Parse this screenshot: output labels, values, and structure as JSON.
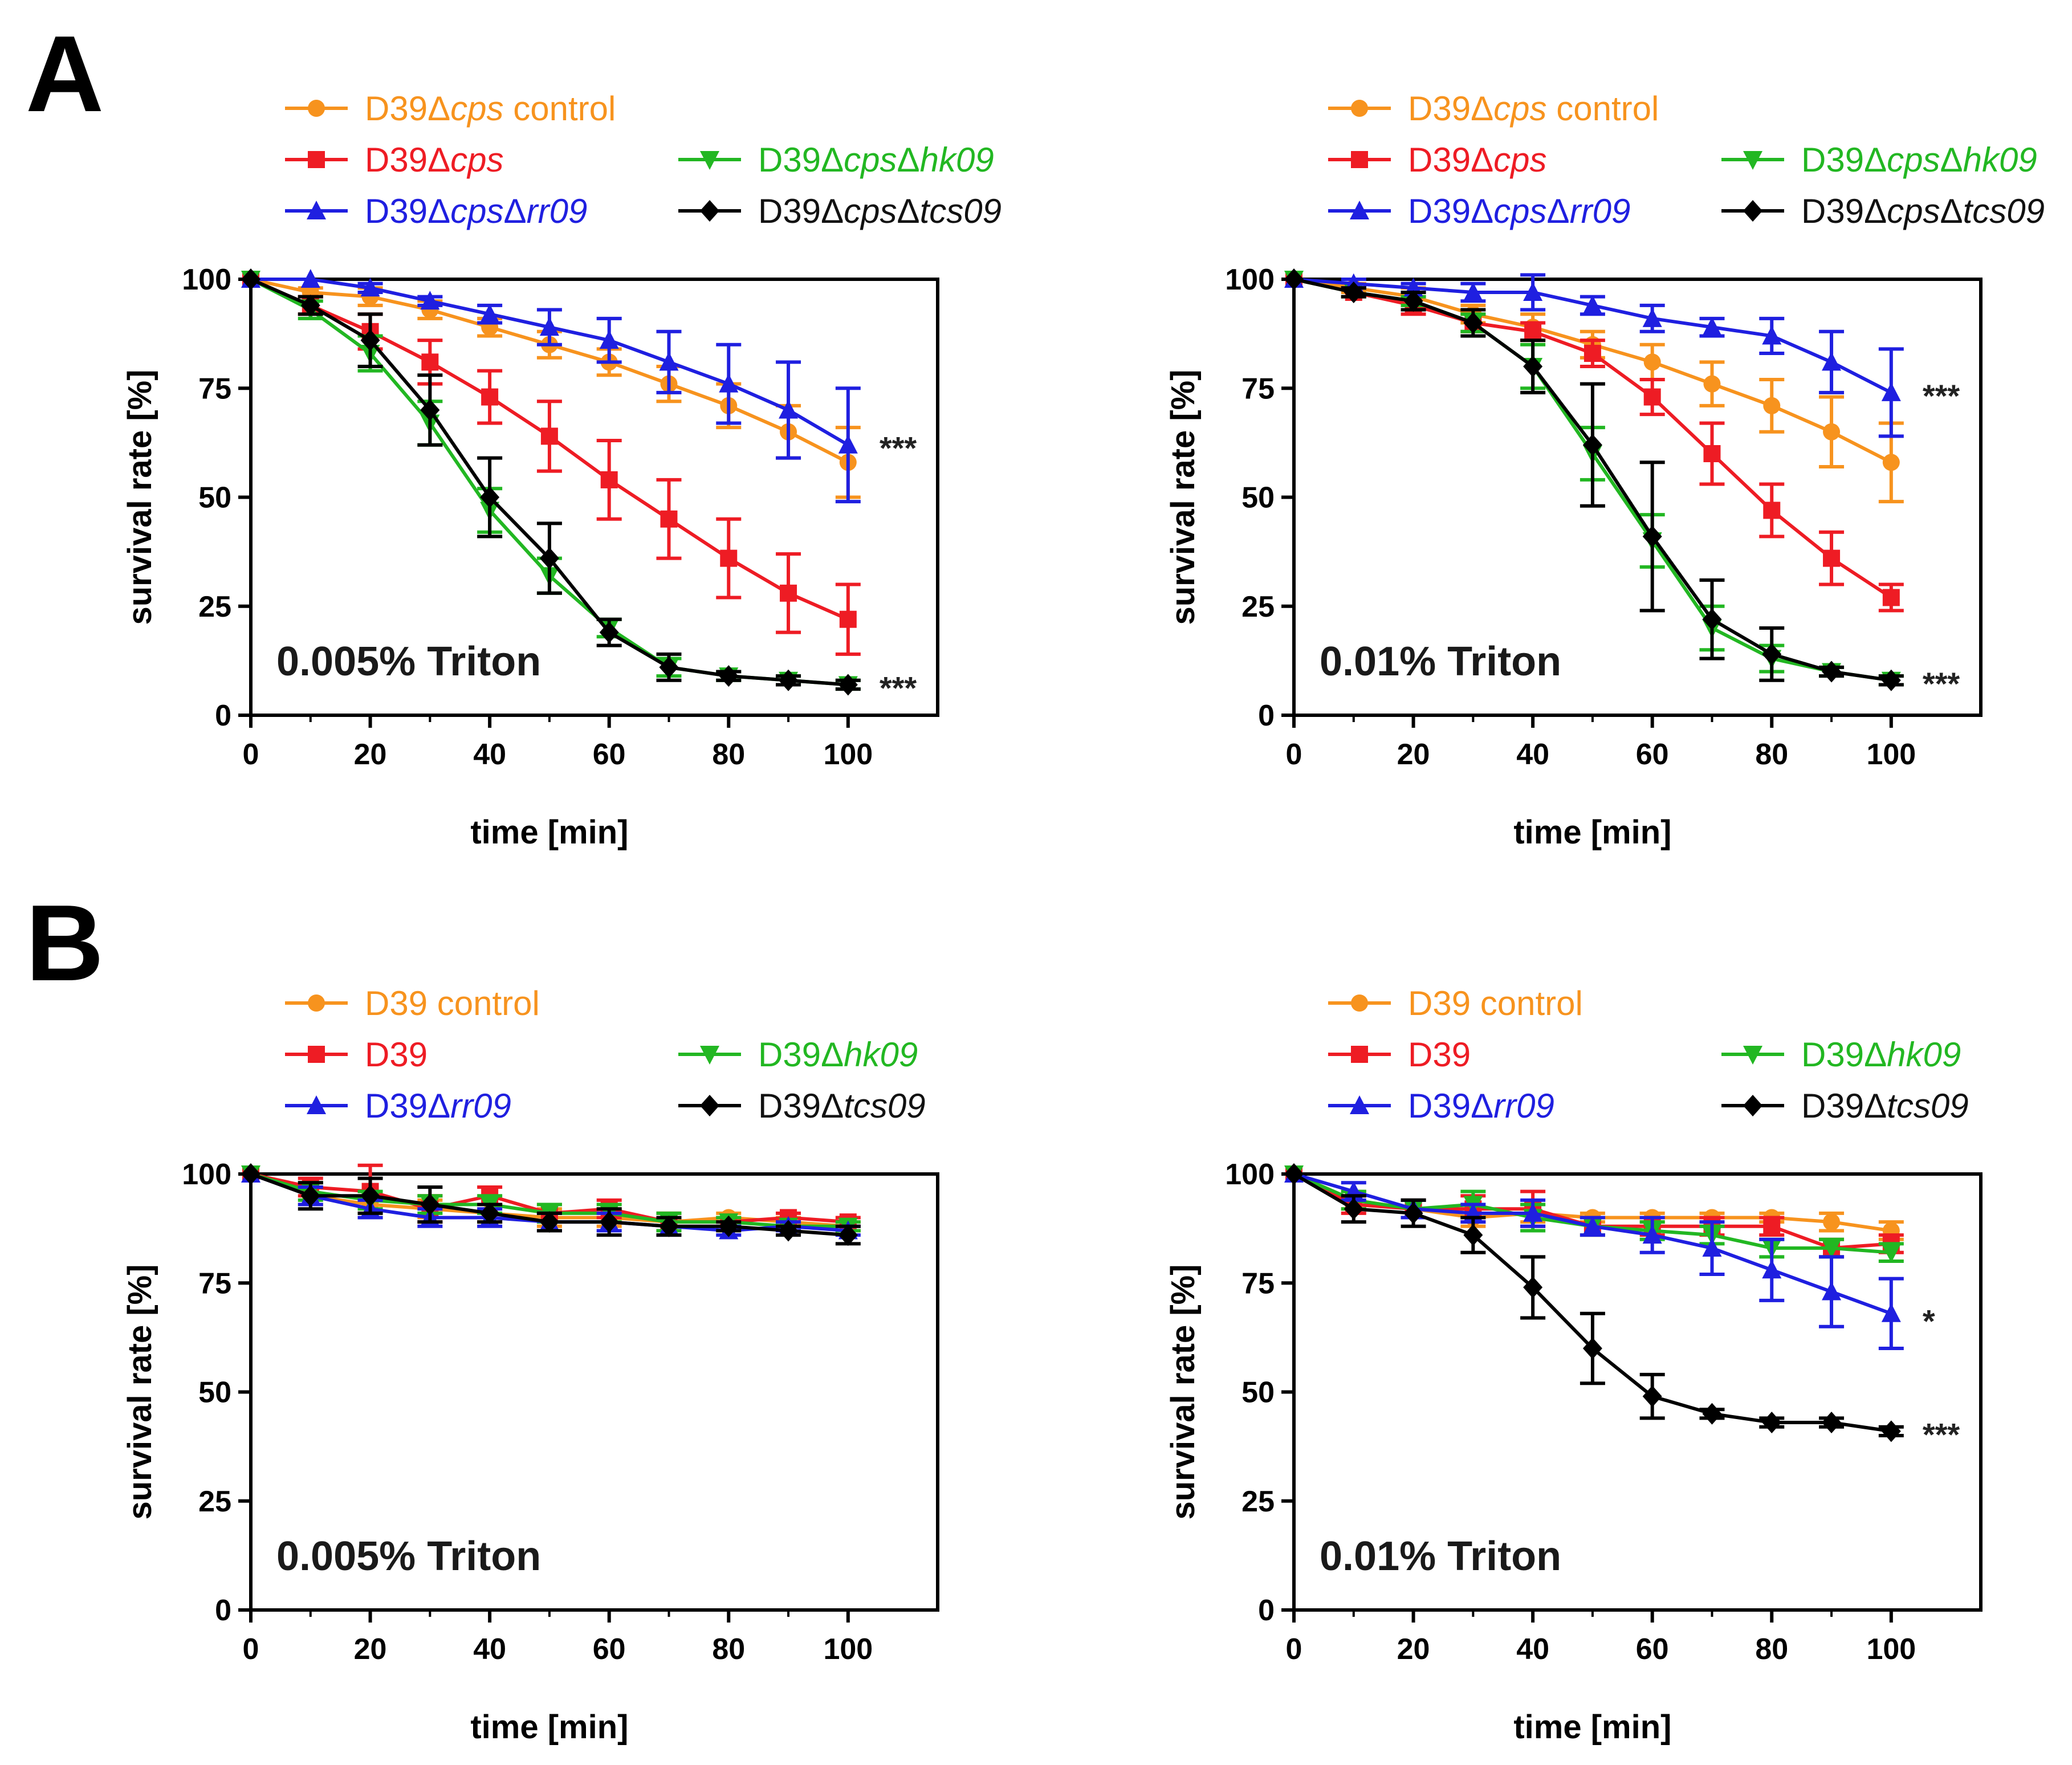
{
  "figure": {
    "panel_labels": [
      "A",
      "B"
    ]
  },
  "chart_data": [
    {
      "type": "line",
      "panel": "A",
      "title": "",
      "annotation": "0.005% Triton",
      "xlabel": "time [min]",
      "ylabel": "survival rate [%]",
      "xlim": [
        0,
        115
      ],
      "ylim": [
        0,
        100
      ],
      "xticks": [
        "0",
        "20",
        "40",
        "60",
        "80",
        "100"
      ],
      "yticks": [
        "0",
        "25",
        "50",
        "75",
        "100"
      ],
      "x": [
        0,
        10,
        20,
        30,
        40,
        50,
        60,
        70,
        80,
        90,
        100
      ],
      "series": [
        {
          "name": "D39Δcps control",
          "color": "#f7931e",
          "marker": "circle",
          "values": [
            100,
            97,
            96,
            93,
            89,
            85,
            81,
            76,
            71,
            65,
            58
          ],
          "errors": [
            0,
            1,
            2,
            2,
            2,
            3,
            3,
            4,
            5,
            6,
            8
          ]
        },
        {
          "name": "D39Δcps",
          "color": "#ee1c24",
          "marker": "square",
          "values": [
            100,
            94,
            88,
            81,
            73,
            64,
            54,
            45,
            36,
            28,
            22
          ],
          "errors": [
            0,
            2,
            4,
            5,
            6,
            8,
            9,
            9,
            9,
            9,
            8
          ]
        },
        {
          "name": "D39ΔcpsΔhk09",
          "color": "#22b722",
          "marker": "triangle-down",
          "values": [
            100,
            93,
            83,
            67,
            47,
            32,
            20,
            11,
            9,
            8,
            7
          ],
          "errors": [
            0,
            2,
            4,
            5,
            5,
            4,
            2,
            2,
            1,
            1,
            1
          ]
        },
        {
          "name": "D39ΔcpsΔrr09",
          "color": "#1f1fe0",
          "marker": "triangle-up",
          "values": [
            100,
            100,
            98,
            95,
            92,
            89,
            86,
            81,
            76,
            70,
            62
          ],
          "errors": [
            0,
            0,
            1,
            1,
            2,
            4,
            5,
            7,
            9,
            11,
            13
          ]
        },
        {
          "name": "D39ΔcpsΔtcs09",
          "color": "#000000",
          "marker": "diamond",
          "values": [
            100,
            94,
            86,
            70,
            50,
            36,
            19,
            11,
            9,
            8,
            7
          ],
          "errors": [
            0,
            2,
            6,
            8,
            9,
            8,
            3,
            3,
            1,
            1,
            1
          ]
        }
      ],
      "significance": [
        {
          "text": "***",
          "y": 62
        },
        {
          "text": "***",
          "y": 7
        }
      ]
    },
    {
      "type": "line",
      "panel": "A",
      "title": "",
      "annotation": "0.01% Triton",
      "xlabel": "time [min]",
      "ylabel": "survival rate [%]",
      "xlim": [
        0,
        115
      ],
      "ylim": [
        0,
        100
      ],
      "xticks": [
        "0",
        "20",
        "40",
        "60",
        "80",
        "100"
      ],
      "yticks": [
        "0",
        "25",
        "50",
        "75",
        "100"
      ],
      "x": [
        0,
        10,
        20,
        30,
        40,
        50,
        60,
        70,
        80,
        90,
        100
      ],
      "series": [
        {
          "name": "D39Δcps control",
          "color": "#f7931e",
          "marker": "circle",
          "values": [
            100,
            98,
            96,
            92,
            89,
            85,
            81,
            76,
            71,
            65,
            58
          ],
          "errors": [
            0,
            1,
            2,
            2,
            3,
            3,
            4,
            5,
            6,
            8,
            9
          ]
        },
        {
          "name": "D39Δcps",
          "color": "#ee1c24",
          "marker": "square",
          "values": [
            100,
            97,
            94,
            90,
            88,
            83,
            73,
            60,
            47,
            36,
            27
          ],
          "errors": [
            0,
            1,
            2,
            2,
            2,
            3,
            4,
            7,
            6,
            6,
            3
          ]
        },
        {
          "name": "D39ΔcpsΔhk09",
          "color": "#22b722",
          "marker": "triangle-down",
          "values": [
            100,
            97,
            95,
            90,
            80,
            60,
            40,
            20,
            13,
            10,
            8
          ],
          "errors": [
            0,
            1,
            1,
            2,
            5,
            6,
            6,
            5,
            3,
            1,
            1
          ]
        },
        {
          "name": "D39ΔcpsΔrr09",
          "color": "#1f1fe0",
          "marker": "triangle-up",
          "values": [
            100,
            99,
            98,
            97,
            97,
            94,
            91,
            89,
            87,
            81,
            74
          ],
          "errors": [
            0,
            1,
            1,
            2,
            4,
            2,
            3,
            2,
            4,
            7,
            10
          ]
        },
        {
          "name": "D39ΔcpsΔtcs09",
          "color": "#000000",
          "marker": "diamond",
          "values": [
            100,
            97,
            95,
            90,
            80,
            62,
            41,
            22,
            14,
            10,
            8
          ],
          "errors": [
            0,
            1,
            2,
            3,
            6,
            14,
            17,
            9,
            6,
            1,
            1
          ]
        }
      ],
      "significance": [
        {
          "text": "***",
          "y": 74
        },
        {
          "text": "***",
          "y": 8
        }
      ]
    },
    {
      "type": "line",
      "panel": "B",
      "title": "",
      "annotation": "0.005% Triton",
      "xlabel": "time [min]",
      "ylabel": "survival rate [%]",
      "xlim": [
        0,
        115
      ],
      "ylim": [
        0,
        100
      ],
      "xticks": [
        "0",
        "20",
        "40",
        "60",
        "80",
        "100"
      ],
      "yticks": [
        "0",
        "25",
        "50",
        "75",
        "100"
      ],
      "x": [
        0,
        10,
        20,
        30,
        40,
        50,
        60,
        70,
        80,
        90,
        100
      ],
      "series": [
        {
          "name": "D39 control",
          "color": "#f7931e",
          "marker": "circle",
          "values": [
            100,
            95,
            93,
            92,
            91,
            90,
            90,
            89,
            90,
            89,
            88
          ],
          "errors": [
            0,
            2,
            2,
            2,
            2,
            2,
            2,
            2,
            1,
            1,
            1
          ]
        },
        {
          "name": "D39",
          "color": "#ee1c24",
          "marker": "square",
          "values": [
            100,
            97,
            96,
            92,
            95,
            91,
            92,
            89,
            89,
            90,
            89
          ],
          "errors": [
            0,
            2,
            6,
            3,
            2,
            2,
            2,
            2,
            1,
            1,
            1
          ]
        },
        {
          "name": "D39Δhk09",
          "color": "#22b722",
          "marker": "triangle-down",
          "values": [
            100,
            96,
            94,
            93,
            93,
            91,
            91,
            89,
            89,
            88,
            88
          ],
          "errors": [
            0,
            2,
            2,
            2,
            2,
            2,
            2,
            2,
            1,
            1,
            1
          ]
        },
        {
          "name": "D39Δrr09",
          "color": "#1f1fe0",
          "marker": "triangle-up",
          "values": [
            100,
            95,
            92,
            90,
            90,
            89,
            89,
            88,
            87,
            88,
            87
          ],
          "errors": [
            0,
            2,
            2,
            2,
            2,
            2,
            2,
            2,
            1,
            1,
            1
          ]
        },
        {
          "name": "D39Δtcs09",
          "color": "#000000",
          "marker": "diamond",
          "values": [
            100,
            95,
            95,
            93,
            91,
            89,
            89,
            88,
            88,
            87,
            86
          ],
          "errors": [
            0,
            3,
            4,
            4,
            2,
            2,
            3,
            2,
            1,
            1,
            2
          ]
        }
      ],
      "significance": []
    },
    {
      "type": "line",
      "panel": "B",
      "title": "",
      "annotation": "0.01% Triton",
      "xlabel": "time [min]",
      "ylabel": "survival rate [%]",
      "xlim": [
        0,
        115
      ],
      "ylim": [
        0,
        100
      ],
      "xticks": [
        "0",
        "20",
        "40",
        "60",
        "80",
        "100"
      ],
      "yticks": [
        "0",
        "25",
        "50",
        "75",
        "100"
      ],
      "x": [
        0,
        10,
        20,
        30,
        40,
        50,
        60,
        70,
        80,
        90,
        100
      ],
      "series": [
        {
          "name": "D39 control",
          "color": "#f7931e",
          "marker": "circle",
          "values": [
            100,
            94,
            92,
            90,
            91,
            90,
            90,
            90,
            90,
            89,
            87
          ],
          "errors": [
            0,
            2,
            2,
            2,
            2,
            1,
            1,
            1,
            1,
            2,
            2
          ]
        },
        {
          "name": "D39",
          "color": "#ee1c24",
          "marker": "square",
          "values": [
            100,
            93,
            92,
            92,
            92,
            88,
            88,
            88,
            88,
            83,
            84
          ],
          "errors": [
            0,
            2,
            2,
            3,
            4,
            2,
            2,
            2,
            2,
            2,
            2
          ]
        },
        {
          "name": "D39Δhk09",
          "color": "#22b722",
          "marker": "triangle-down",
          "values": [
            100,
            94,
            92,
            93,
            90,
            88,
            87,
            86,
            83,
            83,
            82
          ],
          "errors": [
            0,
            2,
            2,
            3,
            3,
            2,
            2,
            2,
            2,
            2,
            2
          ]
        },
        {
          "name": "D39Δrr09",
          "color": "#1f1fe0",
          "marker": "triangle-up",
          "values": [
            100,
            96,
            92,
            91,
            91,
            88,
            86,
            83,
            78,
            73,
            68
          ],
          "errors": [
            0,
            2,
            2,
            2,
            3,
            2,
            4,
            6,
            7,
            8,
            8
          ]
        },
        {
          "name": "D39Δtcs09",
          "color": "#000000",
          "marker": "diamond",
          "values": [
            100,
            92,
            91,
            86,
            74,
            60,
            49,
            45,
            43,
            43,
            41
          ],
          "errors": [
            0,
            3,
            3,
            4,
            7,
            8,
            5,
            1,
            1,
            1,
            1
          ]
        }
      ],
      "significance": [
        {
          "text": "*",
          "y": 67
        },
        {
          "text": "***",
          "y": 41
        }
      ]
    }
  ]
}
